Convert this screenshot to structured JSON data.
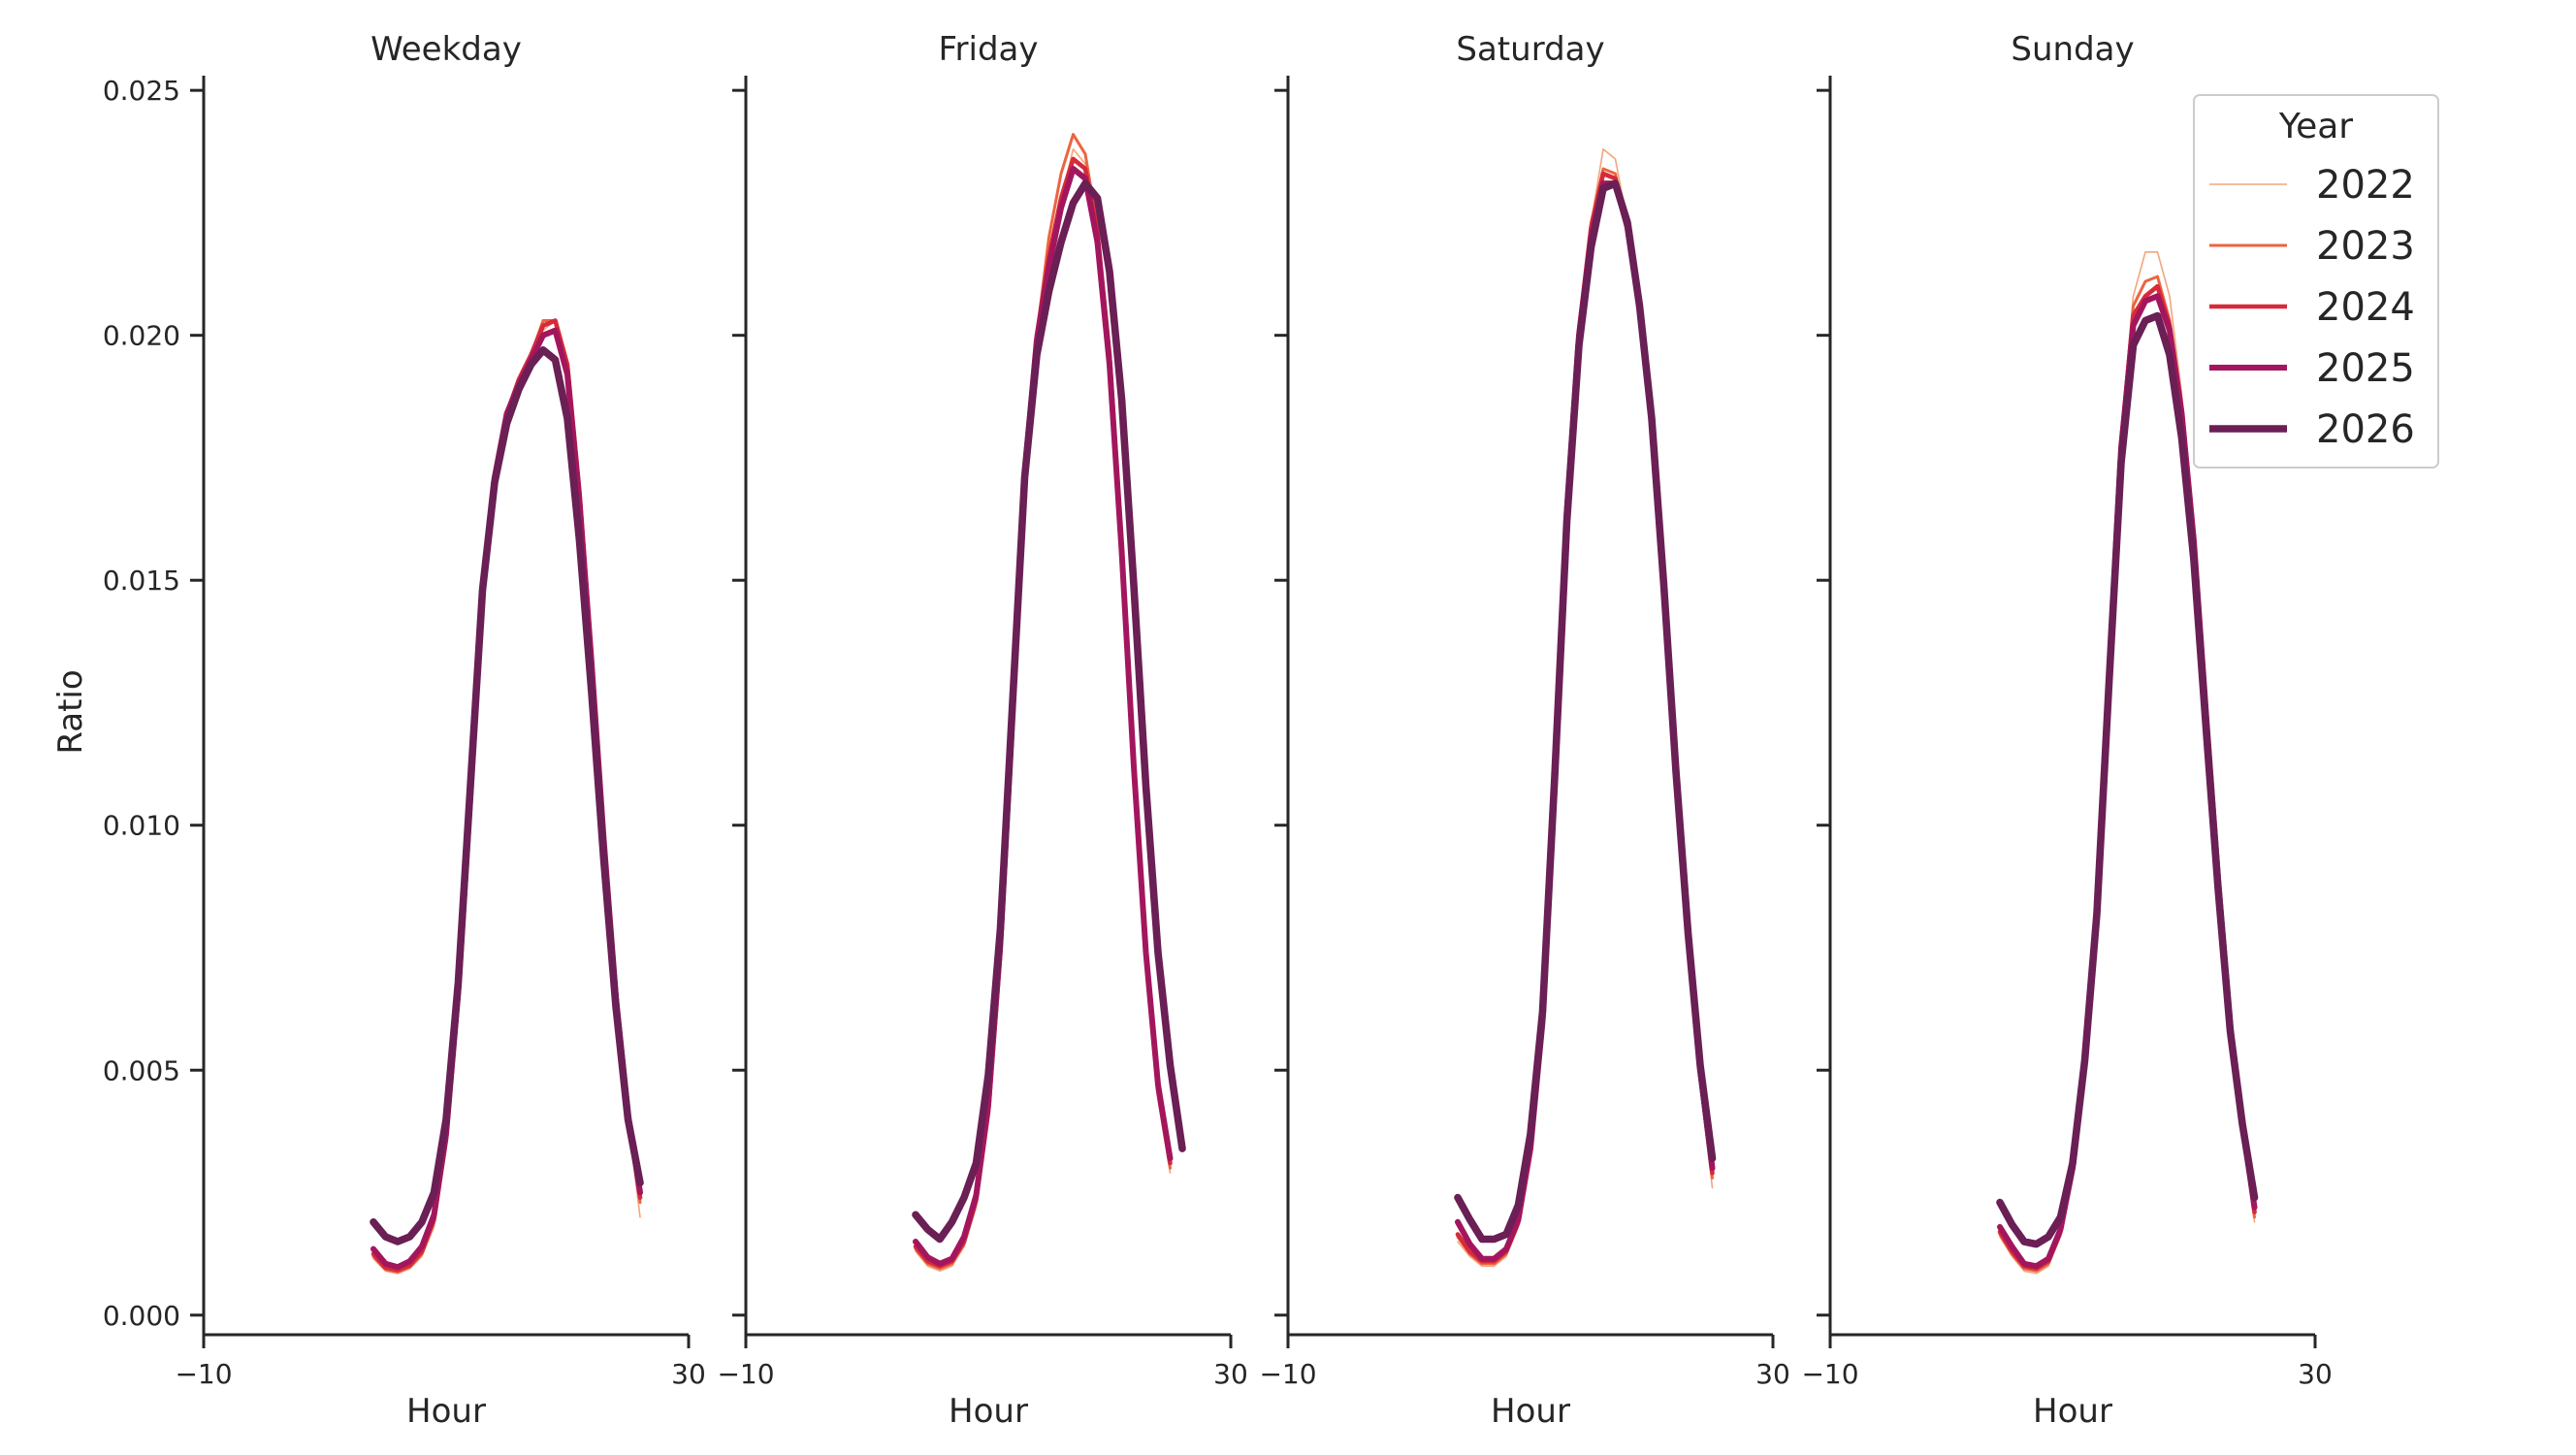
{
  "chart_data": {
    "type": "line",
    "panels": [
      {
        "title": "Weekday",
        "x": [
          0,
          1,
          2,
          3,
          4,
          5,
          6,
          7,
          8,
          9,
          10,
          11,
          12,
          13,
          14,
          15,
          16,
          17,
          18,
          19,
          20,
          21,
          22,
          23
        ],
        "series": [
          {
            "name": "2022",
            "values": [
              0.00115,
              0.0009,
              0.00085,
              0.00095,
              0.0012,
              0.0018,
              0.0034,
              0.0062,
              0.0102,
              0.0145,
              0.017,
              0.0183,
              0.019,
              0.0196,
              0.0201,
              0.0203,
              0.0193,
              0.0166,
              0.0132,
              0.0096,
              0.0064,
              0.004,
              0.002,
              null
            ]
          },
          {
            "name": "2023",
            "values": [
              0.0012,
              0.00093,
              0.00088,
              0.00098,
              0.00125,
              0.0019,
              0.0035,
              0.0064,
              0.0104,
              0.0147,
              0.0171,
              0.0184,
              0.0191,
              0.0196,
              0.0203,
              0.0203,
              0.0194,
              0.0167,
              0.0133,
              0.0097,
              0.0065,
              0.0041,
              0.0023,
              null
            ]
          },
          {
            "name": "2024",
            "values": [
              0.00125,
              0.00097,
              0.00092,
              0.00102,
              0.0013,
              0.00195,
              0.0036,
              0.0065,
              0.0105,
              0.0148,
              0.0171,
              0.0184,
              0.0191,
              0.0196,
              0.0202,
              0.0203,
              0.0194,
              0.0168,
              0.0134,
              0.0098,
              0.0065,
              0.0041,
              0.0024,
              null
            ]
          },
          {
            "name": "2025",
            "values": [
              0.00135,
              0.00105,
              0.00098,
              0.0011,
              0.0014,
              0.00205,
              0.0037,
              0.0066,
              0.0106,
              0.0148,
              0.0171,
              0.0184,
              0.019,
              0.0195,
              0.02,
              0.0201,
              0.0192,
              0.0166,
              0.0133,
              0.0097,
              0.0065,
              0.0041,
              0.0025,
              null
            ]
          },
          {
            "name": "2026",
            "values": [
              0.0019,
              0.0016,
              0.0015,
              0.0016,
              0.0019,
              0.0025,
              0.004,
              0.0068,
              0.0108,
              0.0148,
              0.017,
              0.0182,
              0.0189,
              0.0194,
              0.0197,
              0.0195,
              0.0183,
              0.0158,
              0.0127,
              0.0093,
              0.0063,
              0.004,
              0.0027,
              null
            ]
          }
        ]
      },
      {
        "title": "Friday",
        "x": [
          0,
          1,
          2,
          3,
          4,
          5,
          6,
          7,
          8,
          9,
          10,
          11,
          12,
          13,
          14,
          15,
          16,
          17,
          18,
          19,
          20,
          21,
          22,
          23
        ],
        "series": [
          {
            "name": "2022",
            "values": [
              0.0013,
              0.001,
              0.0009,
              0.001,
              0.0014,
              0.0022,
              0.004,
              0.0072,
              0.012,
              0.017,
              0.0198,
              0.0215,
              0.0228,
              0.0238,
              0.0235,
              0.022,
              0.0195,
              0.0156,
              0.0111,
              0.0072,
              0.0044,
              0.0029,
              null,
              null
            ]
          },
          {
            "name": "2023",
            "values": [
              0.00135,
              0.00105,
              0.00095,
              0.00105,
              0.00145,
              0.0023,
              0.0041,
              0.0073,
              0.0121,
              0.0171,
              0.02,
              0.022,
              0.0233,
              0.0241,
              0.0237,
              0.0222,
              0.0196,
              0.0157,
              0.0112,
              0.0073,
              0.0045,
              0.003,
              null,
              null
            ]
          },
          {
            "name": "2024",
            "values": [
              0.0014,
              0.0011,
              0.001,
              0.0011,
              0.0015,
              0.00235,
              0.00415,
              0.0074,
              0.0122,
              0.0172,
              0.02,
              0.0216,
              0.0228,
              0.0236,
              0.0234,
              0.0221,
              0.0196,
              0.0157,
              0.0112,
              0.0073,
              0.0046,
              0.0031,
              null,
              null
            ]
          },
          {
            "name": "2025",
            "values": [
              0.0015,
              0.00118,
              0.00105,
              0.00115,
              0.0016,
              0.00245,
              0.0043,
              0.0076,
              0.0123,
              0.0172,
              0.0199,
              0.0214,
              0.0226,
              0.0234,
              0.0232,
              0.0219,
              0.0194,
              0.0156,
              0.0112,
              0.0074,
              0.0047,
              0.0032,
              null,
              null
            ]
          },
          {
            "name": "2026",
            "values": [
              0.00205,
              0.00175,
              0.00155,
              0.0019,
              0.0024,
              0.0031,
              0.0049,
              0.0079,
              0.0125,
              0.0171,
              0.0196,
              0.0209,
              0.0219,
              0.0227,
              0.0231,
              0.0228,
              0.0213,
              0.0187,
              0.0149,
              0.0108,
              0.0074,
              0.0051,
              0.0034,
              null
            ]
          }
        ]
      },
      {
        "title": "Saturday",
        "x": [
          0,
          1,
          2,
          3,
          4,
          5,
          6,
          7,
          8,
          9,
          10,
          11,
          12,
          13,
          14,
          15,
          16,
          17,
          18,
          19,
          20,
          21,
          22,
          23
        ],
        "series": [
          {
            "name": "2022",
            "values": [
              0.0015,
              0.0012,
              0.001,
              0.001,
              0.0012,
              0.0018,
              0.0032,
              0.0058,
              0.0108,
              0.0162,
              0.02,
              0.0223,
              0.0238,
              0.0236,
              0.0223,
              0.0206,
              0.0182,
              0.0148,
              0.011,
              0.0077,
              0.0047,
              0.0026,
              null,
              null
            ]
          },
          {
            "name": "2023",
            "values": [
              0.0016,
              0.00125,
              0.00105,
              0.00105,
              0.00125,
              0.00185,
              0.0033,
              0.0059,
              0.0109,
              0.0163,
              0.0201,
              0.0223,
              0.0234,
              0.0233,
              0.0222,
              0.0206,
              0.0183,
              0.0149,
              0.0111,
              0.0078,
              0.0048,
              0.0028,
              null,
              null
            ]
          },
          {
            "name": "2024",
            "values": [
              0.00165,
              0.0013,
              0.0011,
              0.0011,
              0.0013,
              0.0019,
              0.00335,
              0.006,
              0.011,
              0.0164,
              0.0201,
              0.0222,
              0.0233,
              0.0232,
              0.0222,
              0.0206,
              0.0183,
              0.0149,
              0.0111,
              0.0078,
              0.0049,
              0.0029,
              null,
              null
            ]
          },
          {
            "name": "2025",
            "values": [
              0.0019,
              0.00145,
              0.00115,
              0.00115,
              0.00135,
              0.00195,
              0.0034,
              0.006,
              0.011,
              0.0164,
              0.02,
              0.022,
              0.0231,
              0.0231,
              0.0222,
              0.0206,
              0.0183,
              0.0149,
              0.0111,
              0.0078,
              0.005,
              0.003,
              null,
              null
            ]
          },
          {
            "name": "2026",
            "values": [
              0.0024,
              0.00195,
              0.00155,
              0.00155,
              0.00165,
              0.00225,
              0.0037,
              0.0062,
              0.011,
              0.0162,
              0.0198,
              0.0218,
              0.023,
              0.0231,
              0.0223,
              0.0206,
              0.0183,
              0.0149,
              0.0111,
              0.0078,
              0.0051,
              0.0032,
              null,
              null
            ]
          }
        ]
      },
      {
        "title": "Sunday",
        "x": [
          0,
          1,
          2,
          3,
          4,
          5,
          6,
          7,
          8,
          9,
          10,
          11,
          12,
          13,
          14,
          15,
          16,
          17,
          18,
          19,
          20,
          21,
          22,
          23
        ],
        "series": [
          {
            "name": "2022",
            "values": [
              0.0016,
              0.0012,
              0.0009,
              0.00085,
              0.001,
              0.0016,
              0.0029,
              0.005,
              0.008,
              0.013,
              0.018,
              0.0208,
              0.0217,
              0.0217,
              0.0208,
              0.0188,
              0.016,
              0.0124,
              0.0088,
              0.0058,
              0.0037,
              0.0019,
              null,
              null
            ]
          },
          {
            "name": "2023",
            "values": [
              0.00165,
              0.00125,
              0.00095,
              0.0009,
              0.00105,
              0.00165,
              0.00295,
              0.0051,
              0.0081,
              0.0131,
              0.0179,
              0.0206,
              0.0211,
              0.0212,
              0.0203,
              0.0185,
              0.0159,
              0.0123,
              0.0088,
              0.0058,
              0.0038,
              0.002,
              null,
              null
            ]
          },
          {
            "name": "2024",
            "values": [
              0.0017,
              0.0013,
              0.001,
              0.00095,
              0.0011,
              0.0017,
              0.003,
              0.0051,
              0.0081,
              0.0131,
              0.0178,
              0.0204,
              0.0208,
              0.021,
              0.0202,
              0.0185,
              0.0159,
              0.0124,
              0.0089,
              0.0059,
              0.0039,
              0.0021,
              null,
              null
            ]
          },
          {
            "name": "2025",
            "values": [
              0.0018,
              0.0014,
              0.00105,
              0.001,
              0.00115,
              0.00175,
              0.003,
              0.0051,
              0.0081,
              0.013,
              0.0177,
              0.0202,
              0.0207,
              0.0208,
              0.0201,
              0.0184,
              0.0158,
              0.0123,
              0.0089,
              0.0059,
              0.0039,
              0.0022,
              null,
              null
            ]
          },
          {
            "name": "2026",
            "values": [
              0.0023,
              0.00185,
              0.0015,
              0.00145,
              0.0016,
              0.002,
              0.0031,
              0.0052,
              0.0082,
              0.0129,
              0.0174,
              0.0198,
              0.0203,
              0.0204,
              0.0196,
              0.0179,
              0.0154,
              0.012,
              0.0087,
              0.0058,
              0.0039,
              0.0024,
              null,
              null
            ]
          }
        ]
      }
    ],
    "x_offset_hours": 4,
    "xlabel": "Hour",
    "ylabel": "Ratio",
    "xlim": [
      -10,
      30
    ],
    "ylim": [
      -0.0004,
      0.0253
    ],
    "xticks": [
      -10,
      30
    ],
    "xtick_labels": [
      "−10",
      "30"
    ],
    "yticks": [
      0.0,
      0.005,
      0.01,
      0.015,
      0.02,
      0.025
    ],
    "ytick_labels": [
      "0.000",
      "0.005",
      "0.010",
      "0.015",
      "0.020",
      "0.025"
    ],
    "grid": false,
    "legend": {
      "title": "Year",
      "placement": "top-right",
      "entries": [
        {
          "name": "2022",
          "color": "#f2a57c",
          "width_level": 1
        },
        {
          "name": "2023",
          "color": "#eb6541",
          "width_level": 2
        },
        {
          "name": "2024",
          "color": "#d52b3a",
          "width_level": 3
        },
        {
          "name": "2025",
          "color": "#a3165e",
          "width_level": 4
        },
        {
          "name": "2026",
          "color": "#6a1f55",
          "width_level": 5
        }
      ]
    }
  }
}
